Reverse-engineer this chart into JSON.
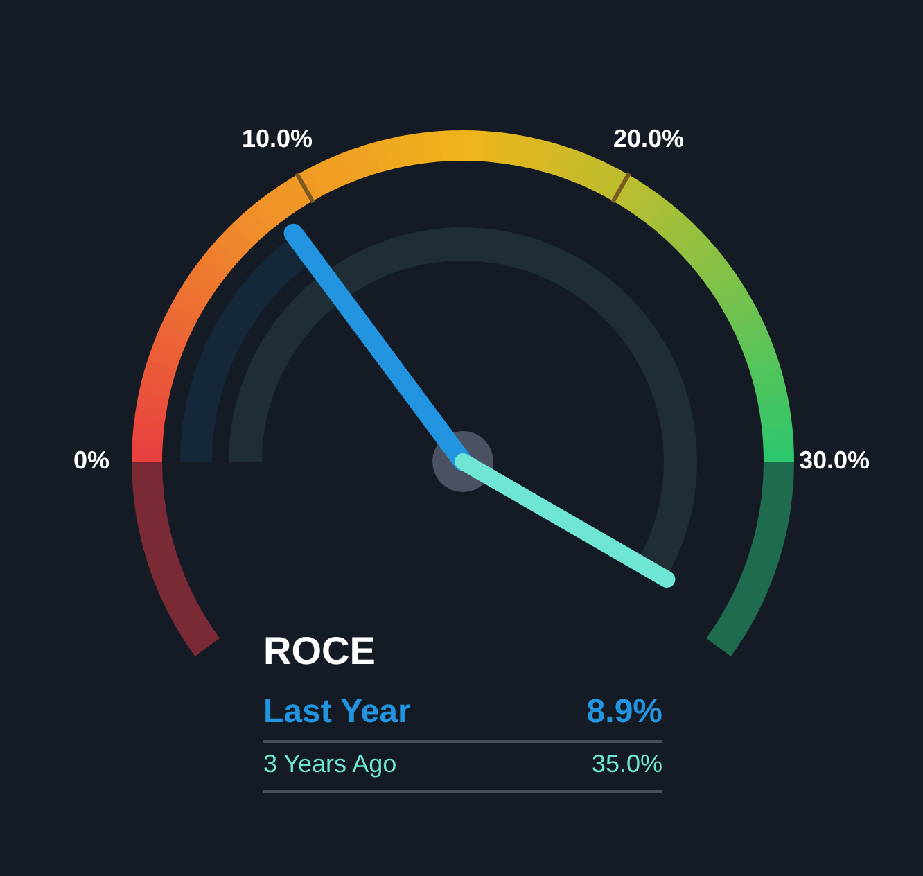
{
  "chart_data": {
    "type": "other",
    "title": "ROCE",
    "categories": [
      "Last Year",
      "3 Years Ago"
    ],
    "values": [
      8.9,
      35.0
    ],
    "colors": [
      "#2394df",
      "#6fe6d4"
    ],
    "value_labels": [
      "8.9%",
      "35.0%"
    ],
    "annotations": [
      "0%",
      "10.0%",
      "20.0%",
      "30.0%"
    ]
  }
}
